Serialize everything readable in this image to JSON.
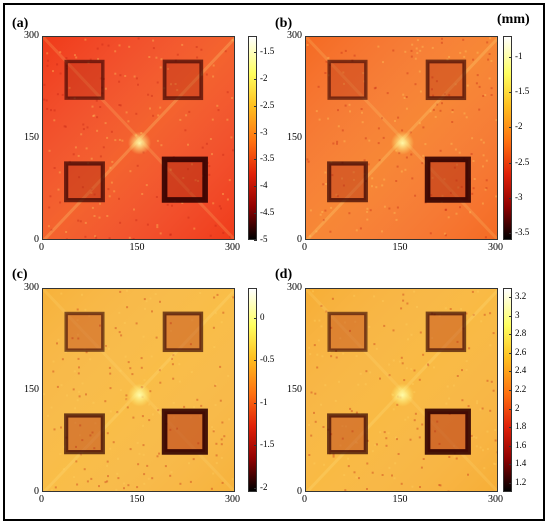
{
  "unit_label": "(mm)",
  "panels": [
    {
      "letter": "(a)",
      "x_ticks": [
        "0",
        "150",
        "300"
      ],
      "y_ticks": [
        "300",
        "150",
        "0"
      ],
      "colorbar_ticks": [
        "-1.5",
        "-2",
        "-2.5",
        "-3",
        "-3.5",
        "-4",
        "-4.5",
        "-5"
      ],
      "colorbar_range": [
        -5,
        -1.2
      ],
      "colormap": "hot",
      "background_color": "#f03a18"
    },
    {
      "letter": "(b)",
      "x_ticks": [
        "0",
        "150",
        "300"
      ],
      "y_ticks": [
        "300",
        "150",
        "0"
      ],
      "colorbar_ticks": [
        "-1",
        "-1.5",
        "-2",
        "-2.5",
        "-3",
        "-3.5"
      ],
      "colorbar_range": [
        -3.6,
        -0.7
      ],
      "colormap": "hot",
      "background_color": "#f56a22"
    },
    {
      "letter": "(c)",
      "x_ticks": [
        "0",
        "150",
        "300"
      ],
      "y_ticks": [
        "300",
        "150",
        "0"
      ],
      "colorbar_ticks": [
        "0",
        "-0.5",
        "-1",
        "-1.5",
        "-2"
      ],
      "colorbar_range": [
        -2.05,
        0.35
      ],
      "colormap": "hot",
      "background_color": "#f7b23a"
    },
    {
      "letter": "(d)",
      "x_ticks": [
        "0",
        "150",
        "300"
      ],
      "y_ticks": [
        "300",
        "150",
        "0"
      ],
      "colorbar_ticks": [
        "3.2",
        "3",
        "2.8",
        "2.6",
        "2.4",
        "2.2",
        "2",
        "1.8",
        "1.6",
        "1.4",
        "1.2"
      ],
      "colorbar_range": [
        1.1,
        3.3
      ],
      "colormap": "hot",
      "background_color": "#f7ae35"
    }
  ]
}
